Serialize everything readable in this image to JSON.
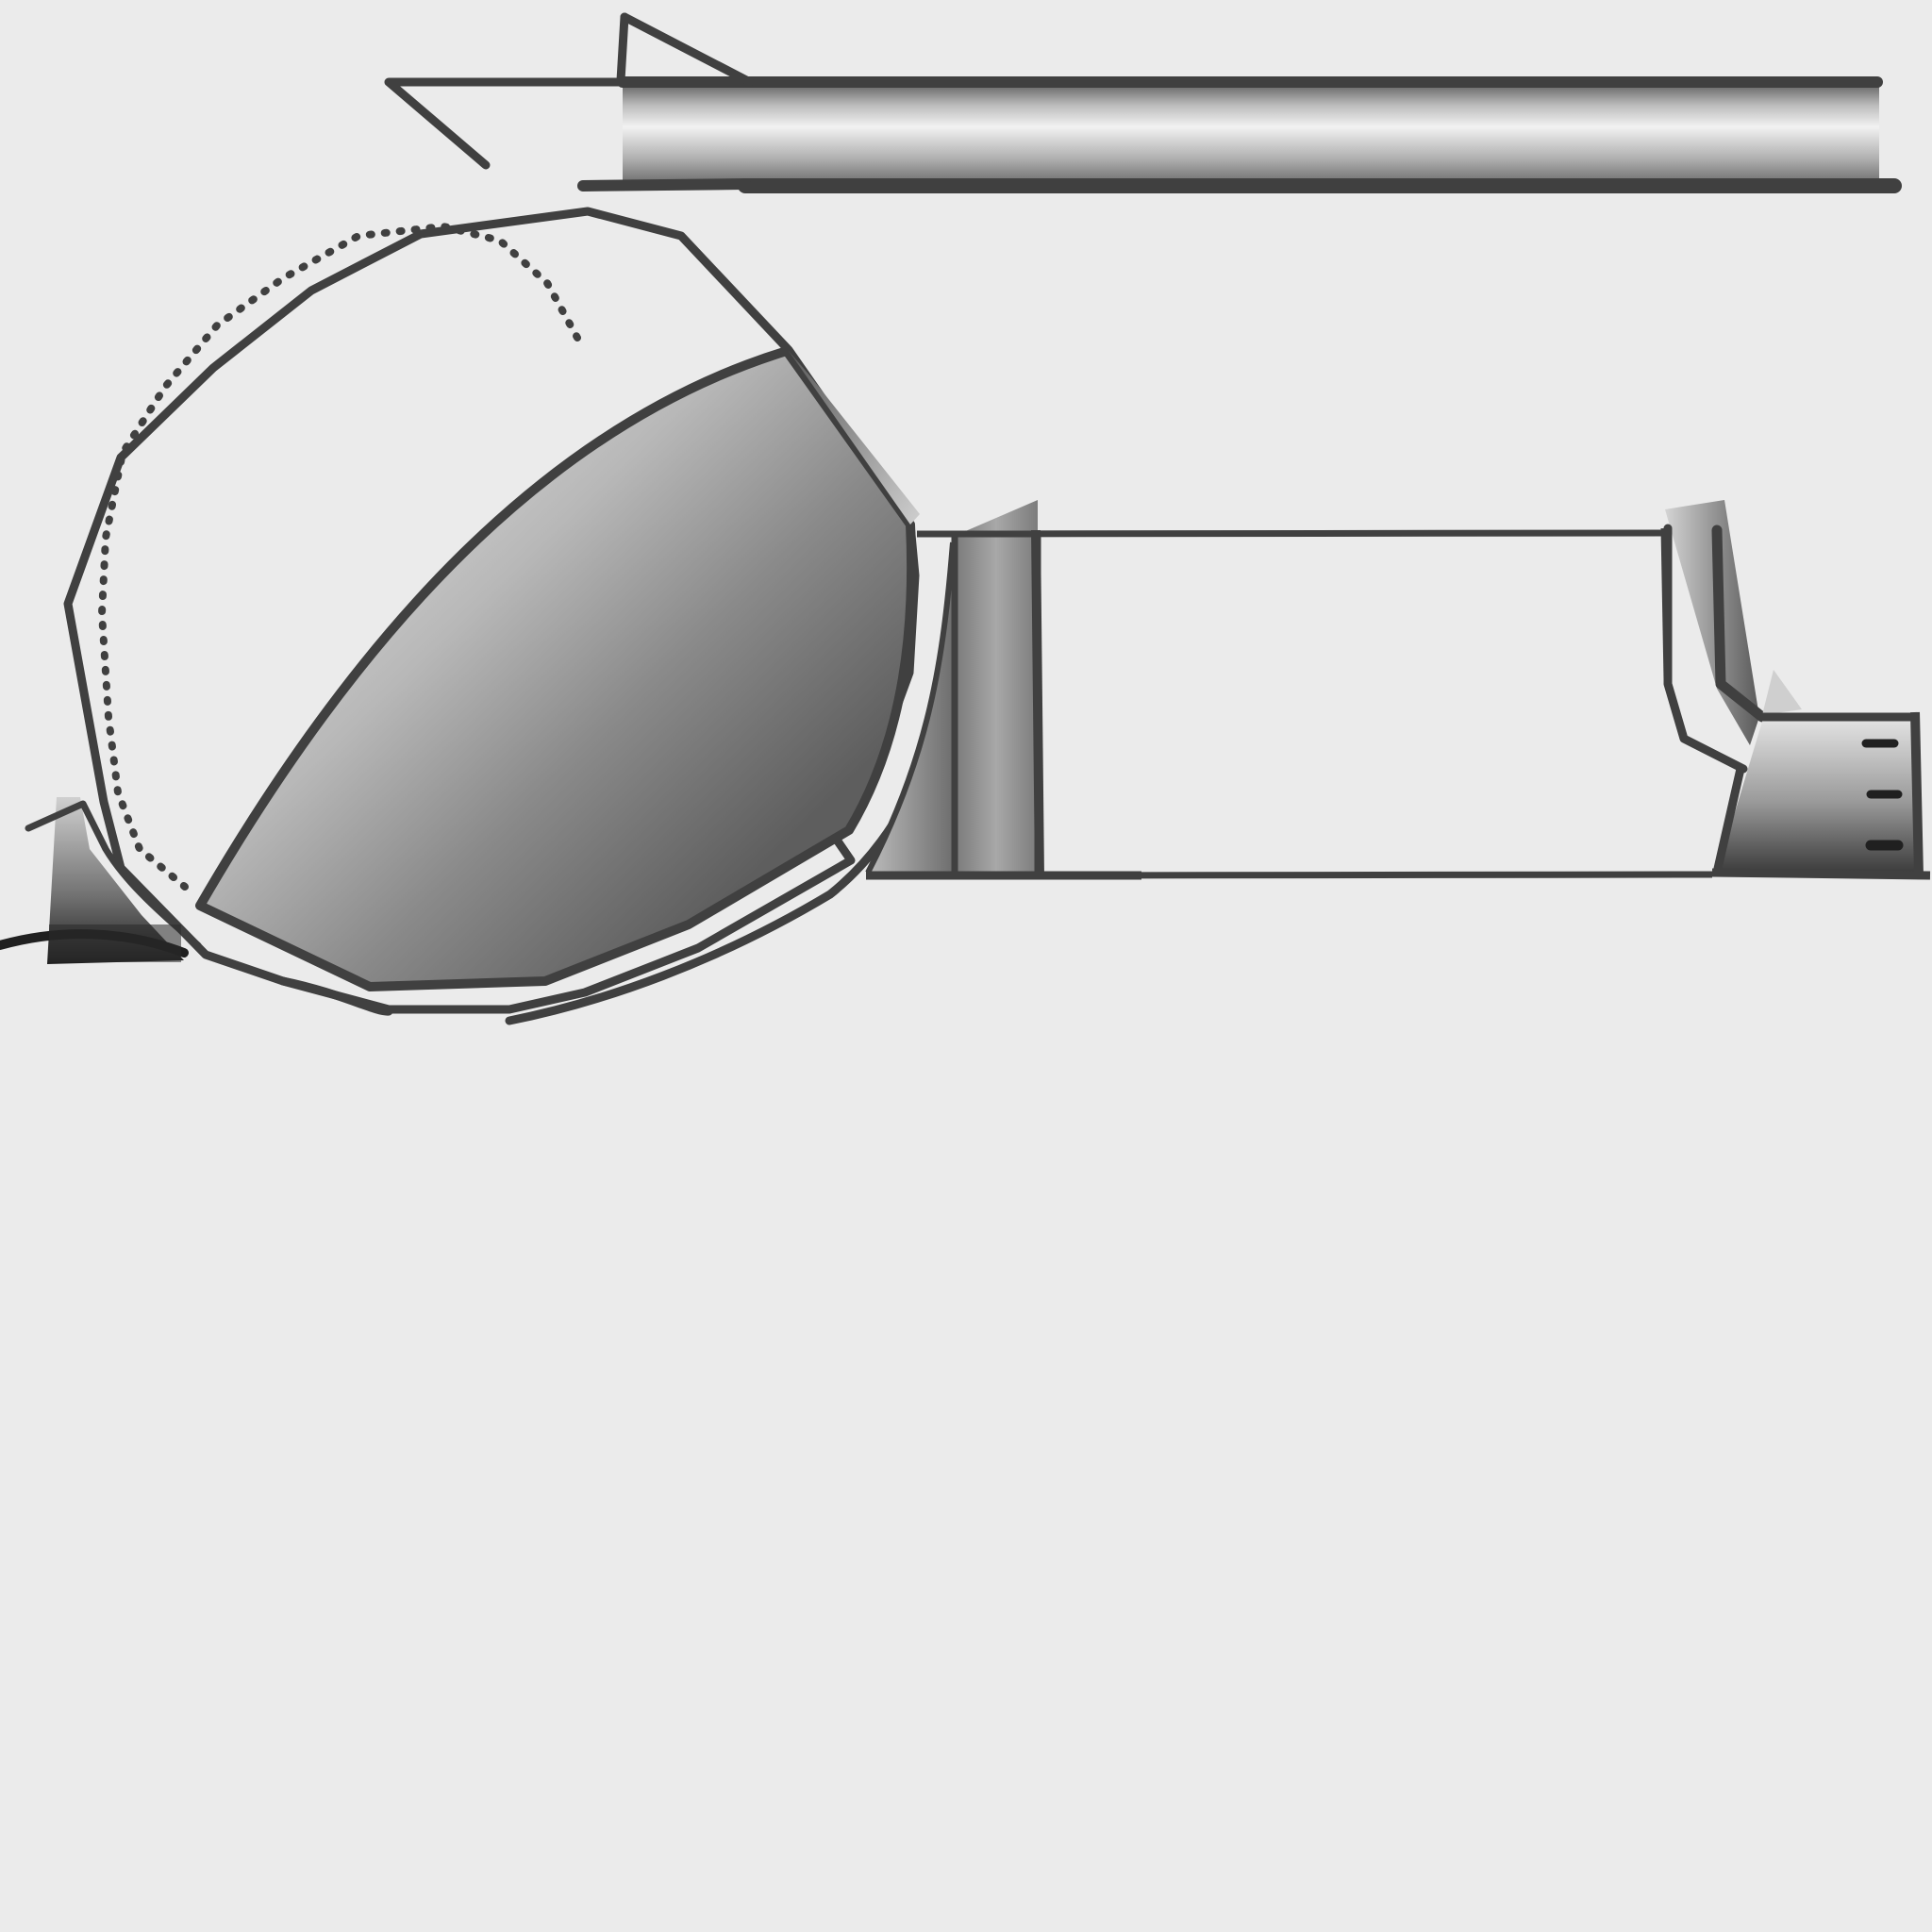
{
  "drawing": {
    "background": "#ebebeb",
    "ink": "#404040",
    "shades": {
      "light": "#d0d0d0",
      "mid": "#9a9a9a",
      "dark": "#606060"
    },
    "icons": [
      "toolbar-bar-icon",
      "arrow-head-icon",
      "dome-polygon-icon",
      "shaded-wedge-icon",
      "frame-rectangle-icon",
      "pillar-icon",
      "ruler-block-icon",
      "ground-stub-icon"
    ]
  }
}
